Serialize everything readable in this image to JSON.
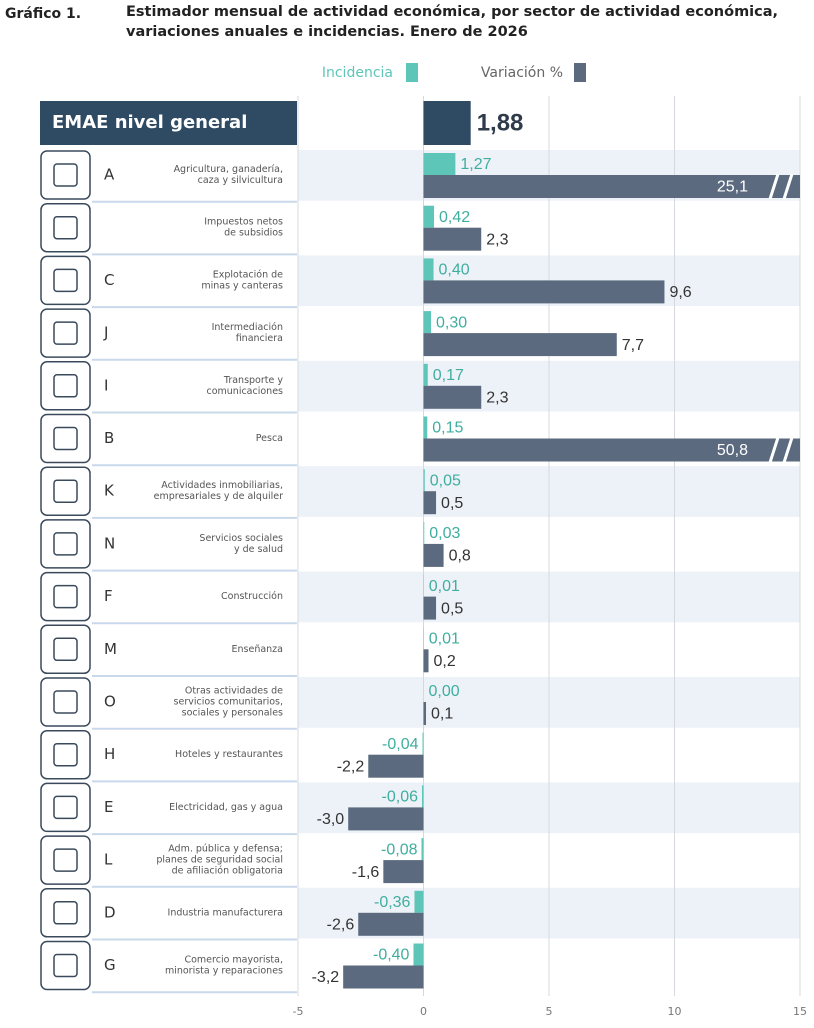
{
  "chart_data": {
    "type": "bar",
    "figure_label": "Gráfico 1.",
    "title": "Estimador mensual de actividad económica, por sector de actividad económica, variaciones anuales e incidencias. Enero de 2026",
    "total_label": "EMAE nivel general",
    "total_value": 1.88,
    "total_value_label": "1,88",
    "total_color": "#2f4a63",
    "codes": [
      "A",
      null,
      "C",
      "J",
      "I",
      "B",
      "K",
      "N",
      "F",
      "M",
      "O",
      "H",
      "E",
      "L",
      "D",
      "G"
    ],
    "categories": [
      [
        "Agricultura, ganadería,",
        "caza y silvicultura"
      ],
      [
        "Impuestos netos",
        "de subsidios"
      ],
      [
        "Explotación de",
        "minas y canteras"
      ],
      [
        "Intermediación",
        "financiera"
      ],
      [
        "Transporte y",
        "comunicaciones"
      ],
      [
        "Pesca"
      ],
      [
        "Actividades inmobiliarias,",
        "empresariales y de alquiler"
      ],
      [
        "Servicios sociales",
        "y de salud"
      ],
      [
        "Construcción"
      ],
      [
        "Enseñanza"
      ],
      [
        "Otras actividades de",
        "servicios comunitarios,",
        "sociales y personales"
      ],
      [
        "Hoteles y restaurantes"
      ],
      [
        "Electricidad, gas y agua"
      ],
      [
        "Adm. pública y defensa;",
        "planes de seguridad social",
        "de afiliación obligatoria"
      ],
      [
        "Industria manufacturera"
      ],
      [
        "Comercio mayorista,",
        "minorista y reparaciones"
      ]
    ],
    "series": [
      {
        "name": "Incidencia",
        "color": "#5ec5b9",
        "values": [
          1.27,
          0.42,
          0.4,
          0.3,
          0.17,
          0.15,
          0.05,
          0.03,
          0.01,
          0.01,
          0.0,
          -0.04,
          -0.06,
          -0.08,
          -0.36,
          -0.4
        ],
        "value_labels": [
          "1,27",
          "0,42",
          "0,40",
          "0,30",
          "0,17",
          "0,15",
          "0,05",
          "0,03",
          "0,01",
          "0,01",
          "0,00",
          "-0,04",
          "-0,06",
          "-0,08",
          "-0,36",
          "-0,40"
        ]
      },
      {
        "name": "Variación %",
        "color": "#5b6a7e",
        "values": [
          25.1,
          2.3,
          9.6,
          7.7,
          2.3,
          50.8,
          0.5,
          0.8,
          0.5,
          0.2,
          0.1,
          -2.2,
          -3.0,
          -1.6,
          -2.6,
          -3.2
        ],
        "value_labels": [
          "25,1",
          "2,3",
          "9,6",
          "7,7",
          "2,3",
          "50,8",
          "0,5",
          "0,8",
          "0,5",
          "0,2",
          "0,1",
          "-2,2",
          "-3,0",
          "-1,6",
          "-2,6",
          "-3,2"
        ]
      }
    ],
    "xlim": [
      -5,
      15
    ],
    "xticks": [
      -5,
      0,
      5,
      10,
      15
    ],
    "grid": true
  }
}
